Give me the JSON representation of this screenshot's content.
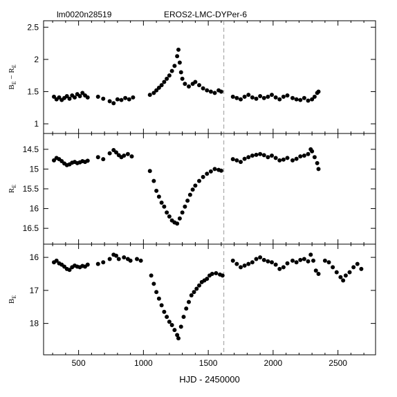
{
  "header": {
    "star_id": "lm0020n28519",
    "title": "EROS2-LMC-DYPer-6"
  },
  "chart_data": {
    "type": "scatter",
    "xlabel": "HJD - 2450000",
    "xlim": [
      230,
      2790
    ],
    "xticks": [
      500,
      1000,
      1500,
      2000,
      2500
    ],
    "dashed_line_x": 1620,
    "panels": [
      {
        "ylabel_main": "B",
        "ylabel_sub": "E",
        "ylabel_main2": "R",
        "ylabel_sub2": "E",
        "ylim": [
          2.6,
          0.85
        ],
        "inverted": false,
        "yticks": [
          1,
          1.5,
          2,
          2.5
        ],
        "ytick_labels": [
          "1",
          "1.5",
          "2",
          "2.5"
        ],
        "points": [
          [
            310,
            1.42
          ],
          [
            330,
            1.38
          ],
          [
            350,
            1.41
          ],
          [
            370,
            1.37
          ],
          [
            390,
            1.4
          ],
          [
            410,
            1.43
          ],
          [
            430,
            1.39
          ],
          [
            450,
            1.44
          ],
          [
            470,
            1.41
          ],
          [
            490,
            1.46
          ],
          [
            510,
            1.43
          ],
          [
            530,
            1.48
          ],
          [
            550,
            1.44
          ],
          [
            570,
            1.41
          ],
          [
            650,
            1.42
          ],
          [
            690,
            1.39
          ],
          [
            740,
            1.35
          ],
          [
            770,
            1.32
          ],
          [
            800,
            1.38
          ],
          [
            830,
            1.37
          ],
          [
            860,
            1.4
          ],
          [
            890,
            1.38
          ],
          [
            920,
            1.41
          ],
          [
            1050,
            1.45
          ],
          [
            1080,
            1.48
          ],
          [
            1100,
            1.52
          ],
          [
            1120,
            1.56
          ],
          [
            1140,
            1.6
          ],
          [
            1160,
            1.65
          ],
          [
            1180,
            1.7
          ],
          [
            1200,
            1.75
          ],
          [
            1220,
            1.82
          ],
          [
            1240,
            1.9
          ],
          [
            1260,
            2.05
          ],
          [
            1270,
            2.15
          ],
          [
            1280,
            1.95
          ],
          [
            1290,
            1.8
          ],
          [
            1300,
            1.7
          ],
          [
            1320,
            1.62
          ],
          [
            1350,
            1.58
          ],
          [
            1380,
            1.62
          ],
          [
            1400,
            1.65
          ],
          [
            1430,
            1.6
          ],
          [
            1460,
            1.55
          ],
          [
            1490,
            1.52
          ],
          [
            1520,
            1.5
          ],
          [
            1550,
            1.48
          ],
          [
            1580,
            1.52
          ],
          [
            1600,
            1.5
          ],
          [
            1690,
            1.42
          ],
          [
            1720,
            1.4
          ],
          [
            1750,
            1.38
          ],
          [
            1780,
            1.42
          ],
          [
            1810,
            1.45
          ],
          [
            1840,
            1.41
          ],
          [
            1870,
            1.39
          ],
          [
            1900,
            1.43
          ],
          [
            1930,
            1.4
          ],
          [
            1960,
            1.42
          ],
          [
            1990,
            1.45
          ],
          [
            2020,
            1.41
          ],
          [
            2050,
            1.38
          ],
          [
            2080,
            1.42
          ],
          [
            2110,
            1.44
          ],
          [
            2150,
            1.4
          ],
          [
            2180,
            1.38
          ],
          [
            2210,
            1.37
          ],
          [
            2240,
            1.4
          ],
          [
            2270,
            1.36
          ],
          [
            2300,
            1.38
          ],
          [
            2320,
            1.42
          ],
          [
            2340,
            1.48
          ],
          [
            2350,
            1.5
          ]
        ]
      },
      {
        "ylabel_main": "R",
        "ylabel_sub": "E",
        "ylim": [
          14.1,
          16.9
        ],
        "inverted": true,
        "yticks": [
          14.5,
          15,
          15.5,
          16,
          16.5
        ],
        "ytick_labels": [
          "14.5",
          "15",
          "15.5",
          "16",
          "16.5"
        ],
        "points": [
          [
            310,
            14.78
          ],
          [
            330,
            14.72
          ],
          [
            350,
            14.75
          ],
          [
            370,
            14.8
          ],
          [
            390,
            14.86
          ],
          [
            410,
            14.9
          ],
          [
            430,
            14.88
          ],
          [
            450,
            14.84
          ],
          [
            470,
            14.82
          ],
          [
            490,
            14.85
          ],
          [
            510,
            14.83
          ],
          [
            530,
            14.8
          ],
          [
            550,
            14.82
          ],
          [
            570,
            14.79
          ],
          [
            650,
            14.7
          ],
          [
            690,
            14.75
          ],
          [
            740,
            14.6
          ],
          [
            770,
            14.52
          ],
          [
            790,
            14.58
          ],
          [
            810,
            14.65
          ],
          [
            830,
            14.7
          ],
          [
            850,
            14.66
          ],
          [
            880,
            14.62
          ],
          [
            910,
            14.68
          ],
          [
            1050,
            15.05
          ],
          [
            1080,
            15.3
          ],
          [
            1100,
            15.55
          ],
          [
            1120,
            15.7
          ],
          [
            1140,
            15.85
          ],
          [
            1160,
            15.95
          ],
          [
            1180,
            16.1
          ],
          [
            1200,
            16.2
          ],
          [
            1220,
            16.3
          ],
          [
            1240,
            16.35
          ],
          [
            1260,
            16.38
          ],
          [
            1280,
            16.25
          ],
          [
            1300,
            16.1
          ],
          [
            1320,
            15.95
          ],
          [
            1340,
            15.8
          ],
          [
            1360,
            15.65
          ],
          [
            1380,
            15.52
          ],
          [
            1400,
            15.42
          ],
          [
            1430,
            15.3
          ],
          [
            1460,
            15.2
          ],
          [
            1490,
            15.12
          ],
          [
            1520,
            15.06
          ],
          [
            1550,
            15.0
          ],
          [
            1580,
            15.02
          ],
          [
            1600,
            15.04
          ],
          [
            1690,
            14.75
          ],
          [
            1720,
            14.78
          ],
          [
            1750,
            14.82
          ],
          [
            1780,
            14.74
          ],
          [
            1810,
            14.7
          ],
          [
            1840,
            14.66
          ],
          [
            1870,
            14.64
          ],
          [
            1900,
            14.62
          ],
          [
            1930,
            14.65
          ],
          [
            1960,
            14.7
          ],
          [
            1990,
            14.66
          ],
          [
            2020,
            14.72
          ],
          [
            2050,
            14.78
          ],
          [
            2080,
            14.76
          ],
          [
            2110,
            14.72
          ],
          [
            2150,
            14.78
          ],
          [
            2180,
            14.74
          ],
          [
            2210,
            14.68
          ],
          [
            2240,
            14.66
          ],
          [
            2270,
            14.62
          ],
          [
            2290,
            14.5
          ],
          [
            2300,
            14.55
          ],
          [
            2320,
            14.7
          ],
          [
            2340,
            14.85
          ],
          [
            2350,
            15.0
          ]
        ]
      },
      {
        "ylabel_main": "B",
        "ylabel_sub": "E",
        "ylim": [
          15.6,
          18.95
        ],
        "inverted": true,
        "yticks": [
          16,
          17,
          18
        ],
        "ytick_labels": [
          "16",
          "17",
          "18"
        ],
        "points": [
          [
            310,
            16.15
          ],
          [
            330,
            16.1
          ],
          [
            350,
            16.18
          ],
          [
            370,
            16.22
          ],
          [
            390,
            16.28
          ],
          [
            410,
            16.35
          ],
          [
            430,
            16.38
          ],
          [
            450,
            16.3
          ],
          [
            470,
            16.25
          ],
          [
            490,
            16.28
          ],
          [
            510,
            16.3
          ],
          [
            530,
            16.26
          ],
          [
            550,
            16.28
          ],
          [
            570,
            16.22
          ],
          [
            650,
            16.2
          ],
          [
            690,
            16.15
          ],
          [
            740,
            16.05
          ],
          [
            770,
            15.92
          ],
          [
            790,
            15.95
          ],
          [
            810,
            16.05
          ],
          [
            850,
            16.0
          ],
          [
            880,
            16.05
          ],
          [
            900,
            16.1
          ],
          [
            950,
            16.05
          ],
          [
            980,
            16.1
          ],
          [
            1060,
            16.55
          ],
          [
            1080,
            16.8
          ],
          [
            1100,
            17.05
          ],
          [
            1120,
            17.25
          ],
          [
            1140,
            17.45
          ],
          [
            1160,
            17.65
          ],
          [
            1180,
            17.8
          ],
          [
            1200,
            17.95
          ],
          [
            1220,
            18.05
          ],
          [
            1240,
            18.2
          ],
          [
            1260,
            18.35
          ],
          [
            1270,
            18.45
          ],
          [
            1290,
            18.1
          ],
          [
            1310,
            17.8
          ],
          [
            1330,
            17.55
          ],
          [
            1350,
            17.35
          ],
          [
            1370,
            17.15
          ],
          [
            1390,
            17.05
          ],
          [
            1410,
            16.95
          ],
          [
            1430,
            16.85
          ],
          [
            1450,
            16.75
          ],
          [
            1470,
            16.7
          ],
          [
            1490,
            16.65
          ],
          [
            1510,
            16.55
          ],
          [
            1530,
            16.5
          ],
          [
            1560,
            16.48
          ],
          [
            1590,
            16.52
          ],
          [
            1610,
            16.55
          ],
          [
            1690,
            16.1
          ],
          [
            1720,
            16.2
          ],
          [
            1750,
            16.3
          ],
          [
            1780,
            16.25
          ],
          [
            1810,
            16.2
          ],
          [
            1840,
            16.15
          ],
          [
            1870,
            16.05
          ],
          [
            1900,
            16.0
          ],
          [
            1930,
            16.08
          ],
          [
            1960,
            16.12
          ],
          [
            1990,
            16.15
          ],
          [
            2020,
            16.22
          ],
          [
            2050,
            16.35
          ],
          [
            2080,
            16.3
          ],
          [
            2110,
            16.18
          ],
          [
            2150,
            16.1
          ],
          [
            2180,
            16.15
          ],
          [
            2210,
            16.08
          ],
          [
            2240,
            16.05
          ],
          [
            2270,
            16.12
          ],
          [
            2290,
            15.92
          ],
          [
            2310,
            16.1
          ],
          [
            2330,
            16.4
          ],
          [
            2350,
            16.5
          ],
          [
            2400,
            16.1
          ],
          [
            2430,
            16.15
          ],
          [
            2460,
            16.3
          ],
          [
            2490,
            16.45
          ],
          [
            2520,
            16.6
          ],
          [
            2540,
            16.7
          ],
          [
            2560,
            16.55
          ],
          [
            2590,
            16.45
          ],
          [
            2620,
            16.3
          ],
          [
            2650,
            16.2
          ],
          [
            2680,
            16.35
          ]
        ]
      }
    ]
  }
}
